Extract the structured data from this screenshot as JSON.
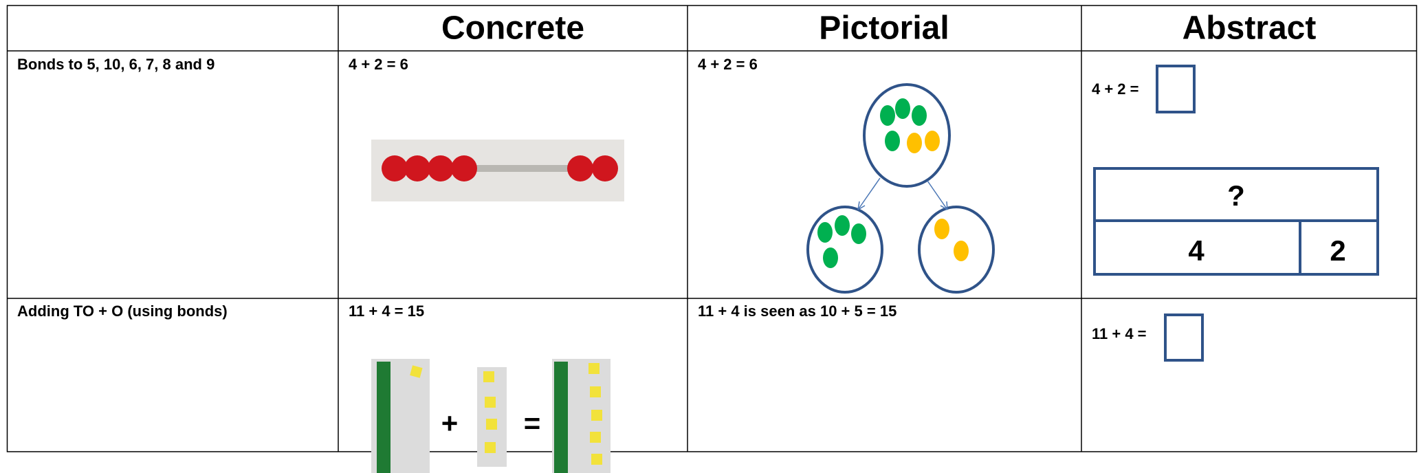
{
  "header": {
    "columns": [
      "Concrete",
      "Pictorial",
      "Abstract"
    ]
  },
  "rows": [
    {
      "label": "Bonds to 5, 10, 6, 7, 8 and 9",
      "concrete": "4 + 2 = 6",
      "pictorial": "4 + 2 = 6",
      "abstract": "4 + 2 =",
      "bar_model": {
        "whole": "?",
        "parts": [
          "4",
          "2"
        ]
      }
    },
    {
      "label": "Adding TO + O (using bonds)",
      "concrete": "11 + 4 = 15",
      "concrete_symbols": [
        "+",
        "="
      ],
      "pictorial": "11 + 4 is seen as 10 + 5 = 15",
      "abstract": "11 + 4 ="
    }
  ]
}
